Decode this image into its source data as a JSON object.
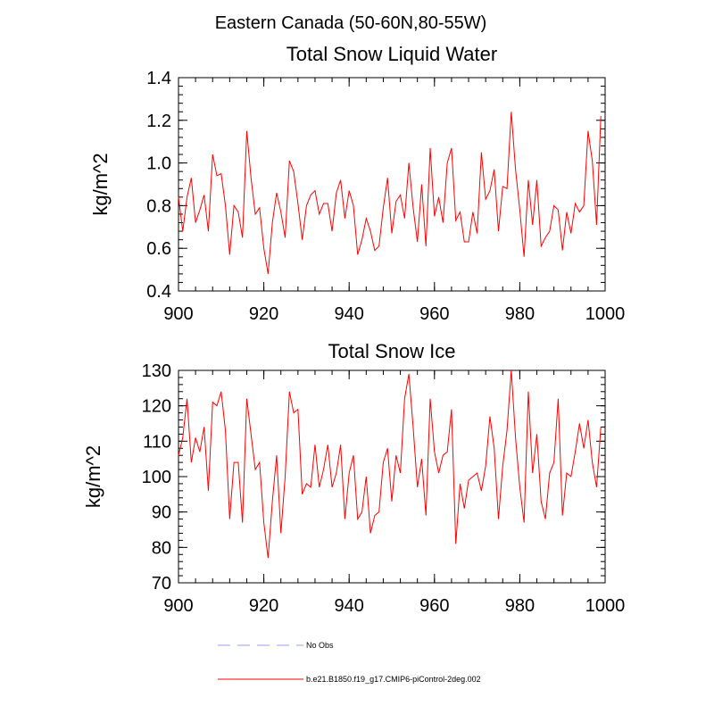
{
  "figure_title": "Eastern Canada (50-60N,80-55W)",
  "legend": {
    "items": [
      {
        "label": "No Obs",
        "color": "#9999ee",
        "style": "dashed"
      },
      {
        "label": "b.e21.B1850.f19_g17.CMIP6-piControl-2deg.002",
        "color": "#ff0000",
        "style": "solid"
      }
    ]
  },
  "chart_data": [
    {
      "type": "line",
      "title": "Total Snow Liquid Water",
      "xlabel": "",
      "ylabel": "kg/m^2",
      "xlim": [
        900,
        1000
      ],
      "ylim": [
        0.4,
        1.4
      ],
      "xticks": [
        900,
        920,
        940,
        960,
        980,
        1000
      ],
      "xtick_labels": [
        "900",
        "920",
        "940",
        "960",
        "980",
        "1000"
      ],
      "yticks": [
        0.4,
        0.6,
        0.8,
        1.0,
        1.2,
        1.4
      ],
      "ytick_labels": [
        "0.4",
        "0.6",
        "0.8",
        "1.0",
        "1.2",
        "1.4"
      ],
      "series": [
        {
          "name": "b.e21.B1850.f19_g17.CMIP6-piControl-2deg.002",
          "color": "#ff0000",
          "x_start": 900,
          "values": [
            0.84,
            0.68,
            0.84,
            0.93,
            0.72,
            0.78,
            0.85,
            0.68,
            1.04,
            0.94,
            0.95,
            0.8,
            0.57,
            0.8,
            0.77,
            0.65,
            1.15,
            0.93,
            0.76,
            0.79,
            0.6,
            0.48,
            0.72,
            0.86,
            0.77,
            0.65,
            1.01,
            0.96,
            0.81,
            0.64,
            0.8,
            0.85,
            0.87,
            0.76,
            0.81,
            0.81,
            0.68,
            0.86,
            0.92,
            0.74,
            0.87,
            0.8,
            0.57,
            0.64,
            0.74,
            0.68,
            0.59,
            0.61,
            0.79,
            0.93,
            0.67,
            0.82,
            0.85,
            0.74,
            1.0,
            0.79,
            0.63,
            0.9,
            0.61,
            1.07,
            0.75,
            0.84,
            0.72,
            1.0,
            1.07,
            0.73,
            0.77,
            0.63,
            0.63,
            0.77,
            0.67,
            1.05,
            0.83,
            0.87,
            0.97,
            0.68,
            0.89,
            0.88,
            1.24,
            0.97,
            0.78,
            0.56,
            0.92,
            0.71,
            0.92,
            0.61,
            0.65,
            0.68,
            0.8,
            0.78,
            0.59,
            0.77,
            0.67,
            0.81,
            0.77,
            0.8,
            1.15,
            1.01,
            0.71,
            1.22
          ]
        }
      ]
    },
    {
      "type": "line",
      "title": "Total Snow Ice",
      "xlabel": "",
      "ylabel": "kg/m^2",
      "xlim": [
        900,
        1000
      ],
      "ylim": [
        70,
        130
      ],
      "xticks": [
        900,
        920,
        940,
        960,
        980,
        1000
      ],
      "xtick_labels": [
        "900",
        "920",
        "940",
        "960",
        "980",
        "1000"
      ],
      "yticks": [
        70,
        80,
        90,
        100,
        110,
        120,
        130
      ],
      "ytick_labels": [
        "70",
        "80",
        "90",
        "100",
        "110",
        "120",
        "130"
      ],
      "series": [
        {
          "name": "b.e21.B1850.f19_g17.CMIP6-piControl-2deg.002",
          "color": "#ff0000",
          "x_start": 900,
          "values": [
            106,
            111,
            122,
            104,
            111,
            107,
            114,
            96,
            121,
            120,
            124,
            113,
            88,
            104,
            104,
            87,
            122,
            112,
            102,
            104,
            87,
            77,
            93,
            106,
            84,
            100,
            124,
            118,
            119,
            95,
            98,
            97,
            109,
            97,
            102,
            109,
            97,
            101,
            109,
            88,
            101,
            106,
            88,
            90,
            100,
            84,
            89,
            90,
            104,
            108,
            93,
            106,
            101,
            122,
            129,
            114,
            97,
            105,
            89,
            122,
            107,
            101,
            106,
            107,
            119,
            81,
            98,
            91,
            99,
            100,
            101,
            96,
            103,
            117,
            108,
            88,
            103,
            113,
            130,
            111,
            97,
            87,
            124,
            101,
            112,
            93,
            88,
            101,
            104,
            122,
            89,
            101,
            100,
            107,
            115,
            108,
            116,
            104,
            97,
            114
          ]
        }
      ]
    }
  ]
}
